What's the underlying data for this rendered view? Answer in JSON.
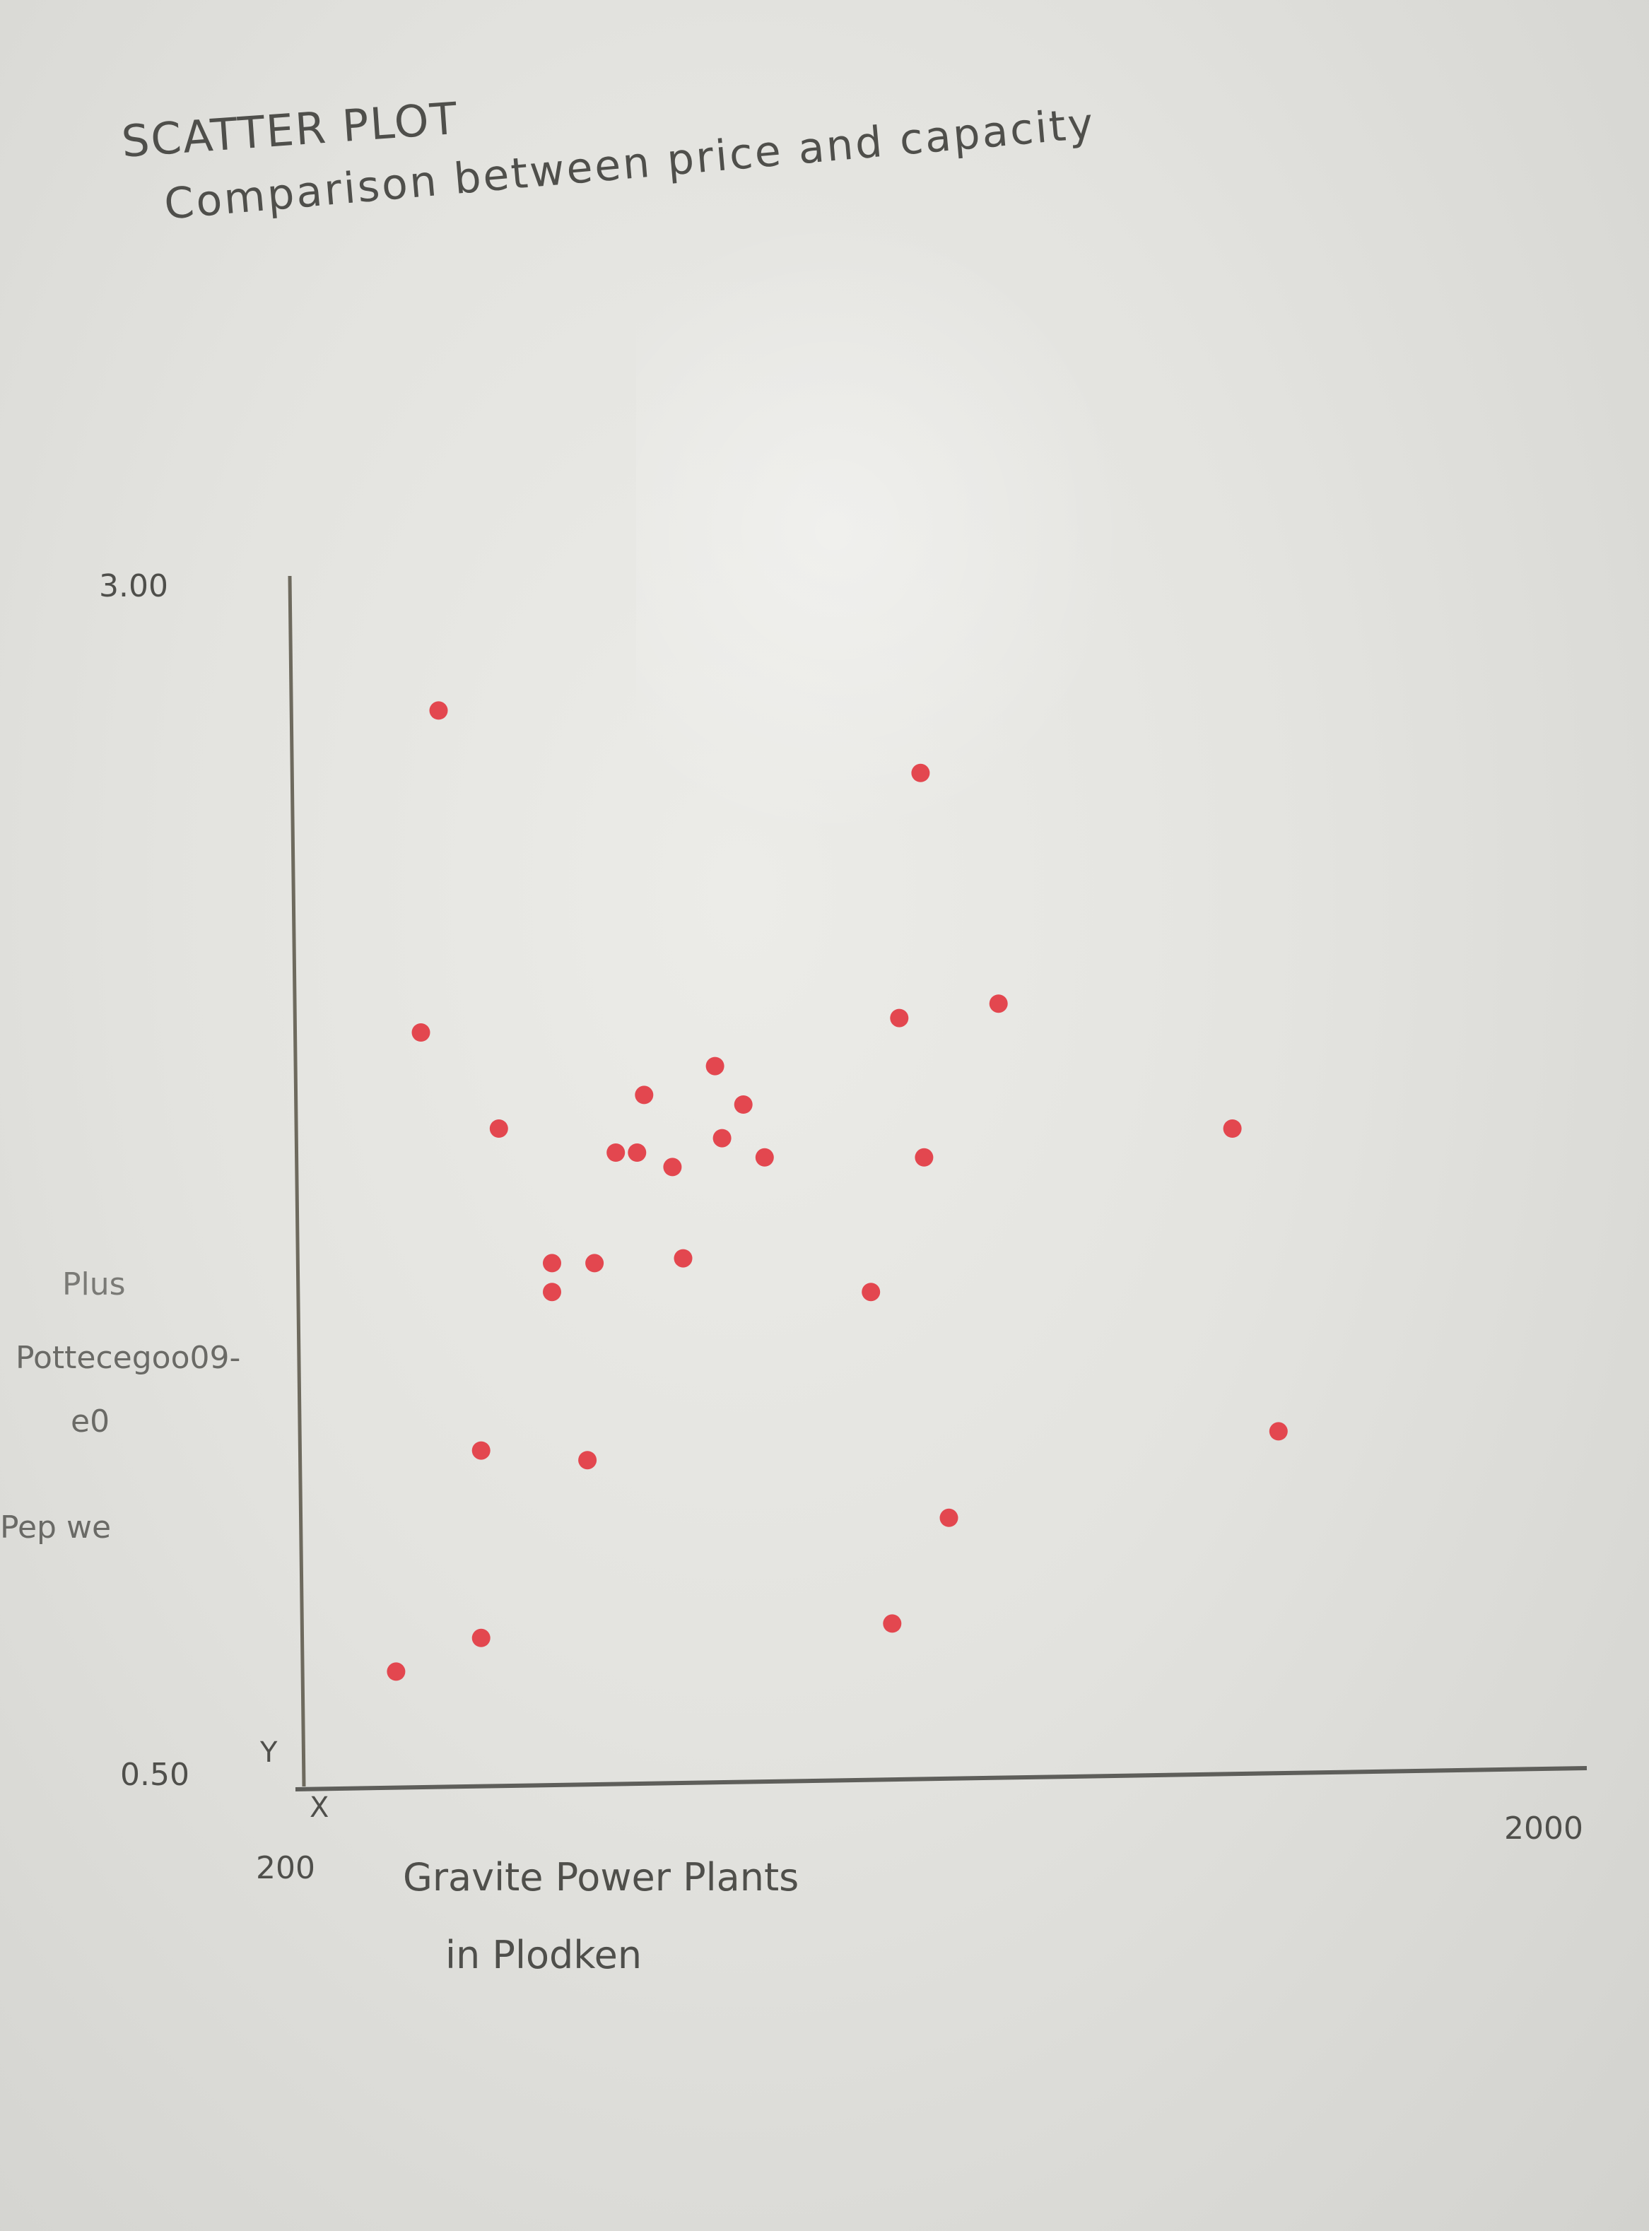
{
  "chart_data": {
    "type": "scatter",
    "title": "SCATTER PLOT",
    "subtitle": "Comparison between price and capacity",
    "xlabel_lines": [
      "Gravite Power Plants",
      "in Plodken"
    ],
    "ylabel_lines": [
      "Plus",
      "Pottecegoo09-",
      "e0",
      "Pep we"
    ],
    "x_axis_name": "X",
    "y_axis_name": "Y",
    "x_tick_labels": [
      "200",
      "2000"
    ],
    "y_tick_labels": [
      "0.50",
      "3.00"
    ],
    "xlim": [
      200,
      2000
    ],
    "ylim": [
      0.5,
      3.0
    ],
    "grid": false,
    "legend": "none",
    "point_color": "#e3474f",
    "x": [
      330,
      365,
      390,
      450,
      450,
      475,
      550,
      550,
      600,
      610,
      640,
      670,
      680,
      720,
      735,
      780,
      790,
      820,
      850,
      1000,
      1030,
      1040,
      1070,
      1075,
      1110,
      1180,
      1510,
      1575
    ],
    "y": [
      0.72,
      2.05,
      2.72,
      1.18,
      0.79,
      1.85,
      1.57,
      1.51,
      1.16,
      1.57,
      1.8,
      1.8,
      1.92,
      1.77,
      1.58,
      1.98,
      1.83,
      1.9,
      1.79,
      1.51,
      0.82,
      2.08,
      2.59,
      1.79,
      1.04,
      2.11,
      1.85,
      1.22
    ]
  }
}
